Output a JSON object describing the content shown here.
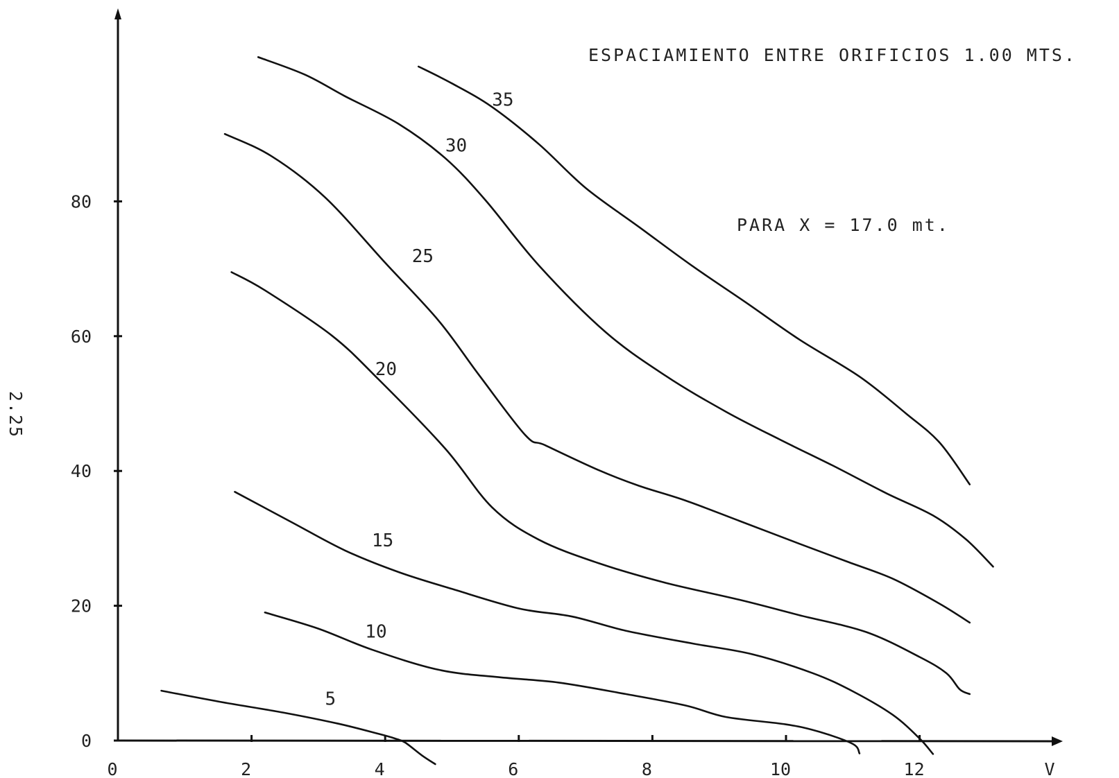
{
  "page_label": "2.25",
  "chart_data": {
    "type": "line",
    "title": "ESPACIAMIENTO ENTRE ORIFICIOS 1.00 MTS.",
    "subtitle": "PARA X = 17.0 mt.",
    "xlabel": "V",
    "ylabel": "",
    "xlim": [
      0,
      14
    ],
    "ylim": [
      0,
      100
    ],
    "grid": false,
    "x_ticks": [
      0,
      2,
      4,
      6,
      8,
      10,
      12
    ],
    "x_tick_labels": [
      "0",
      "2",
      "4",
      "6",
      "8",
      "10",
      "12"
    ],
    "y_ticks": [
      0,
      20,
      40,
      60,
      80
    ],
    "y_tick_labels": [
      "0",
      "20",
      "40",
      "60",
      "80"
    ],
    "series": [
      {
        "name": "5",
        "label_at": [
          3.1,
          5.3
        ],
        "points": [
          [
            0.65,
            7.4
          ],
          [
            1.5,
            5.8
          ],
          [
            2.5,
            4.1
          ],
          [
            3.3,
            2.5
          ],
          [
            3.9,
            1.0
          ],
          [
            4.15,
            0.3
          ],
          [
            4.3,
            -0.3
          ],
          [
            4.55,
            -2.2
          ],
          [
            4.75,
            -3.5
          ]
        ]
      },
      {
        "name": "10",
        "label_at": [
          3.7,
          15.3
        ],
        "points": [
          [
            2.2,
            19.0
          ],
          [
            3.0,
            16.6
          ],
          [
            3.8,
            13.5
          ],
          [
            4.8,
            10.5
          ],
          [
            5.7,
            9.4
          ],
          [
            6.6,
            8.6
          ],
          [
            7.6,
            6.9
          ],
          [
            8.5,
            5.2
          ],
          [
            9.1,
            3.5
          ],
          [
            10.0,
            2.4
          ],
          [
            10.5,
            1.3
          ],
          [
            11.0,
            -0.5
          ],
          [
            11.1,
            -1.9
          ]
        ]
      },
      {
        "name": "15",
        "label_at": [
          3.8,
          28.8
        ],
        "points": [
          [
            1.75,
            36.9
          ],
          [
            2.6,
            32.4
          ],
          [
            3.4,
            28.2
          ],
          [
            4.2,
            25.0
          ],
          [
            5.0,
            22.5
          ],
          [
            6.0,
            19.6
          ],
          [
            6.8,
            18.4
          ],
          [
            7.6,
            16.3
          ],
          [
            8.6,
            14.4
          ],
          [
            9.5,
            12.8
          ],
          [
            10.4,
            10.0
          ],
          [
            11.0,
            7.3
          ],
          [
            11.6,
            3.8
          ],
          [
            12.0,
            0.3
          ],
          [
            12.2,
            -2.0
          ]
        ]
      },
      {
        "name": "20",
        "label_at": [
          3.85,
          54.2
        ],
        "points": [
          [
            1.7,
            69.5
          ],
          [
            2.2,
            66.8
          ],
          [
            3.2,
            60.1
          ],
          [
            3.9,
            53.6
          ],
          [
            4.9,
            43.3
          ],
          [
            5.6,
            34.6
          ],
          [
            6.3,
            29.8
          ],
          [
            7.2,
            26.3
          ],
          [
            8.2,
            23.4
          ],
          [
            9.3,
            20.9
          ],
          [
            10.2,
            18.6
          ],
          [
            11.2,
            16.1
          ],
          [
            12.0,
            12.4
          ],
          [
            12.4,
            10.0
          ],
          [
            12.6,
            7.6
          ],
          [
            12.75,
            6.9
          ]
        ]
      },
      {
        "name": "25",
        "label_at": [
          4.4,
          71.0
        ],
        "points": [
          [
            1.6,
            90.0
          ],
          [
            2.3,
            86.7
          ],
          [
            3.1,
            80.6
          ],
          [
            4.0,
            70.9
          ],
          [
            4.8,
            62.3
          ],
          [
            5.4,
            54.3
          ],
          [
            6.1,
            45.3
          ],
          [
            6.4,
            43.8
          ],
          [
            7.2,
            40.1
          ],
          [
            7.8,
            37.8
          ],
          [
            8.5,
            35.6
          ],
          [
            9.3,
            32.6
          ],
          [
            10.2,
            29.2
          ],
          [
            10.9,
            26.6
          ],
          [
            11.6,
            24.0
          ],
          [
            12.3,
            20.3
          ],
          [
            12.75,
            17.5
          ]
        ]
      },
      {
        "name": "30",
        "label_at": [
          4.9,
          87.4
        ],
        "points": [
          [
            2.1,
            101.4
          ],
          [
            2.8,
            98.8
          ],
          [
            3.4,
            95.6
          ],
          [
            4.2,
            91.5
          ],
          [
            4.9,
            86.4
          ],
          [
            5.5,
            80.2
          ],
          [
            6.3,
            70.5
          ],
          [
            7.3,
            60.6
          ],
          [
            8.2,
            54.1
          ],
          [
            9.1,
            48.8
          ],
          [
            9.9,
            44.7
          ],
          [
            10.7,
            40.8
          ],
          [
            11.5,
            36.7
          ],
          [
            12.2,
            33.4
          ],
          [
            12.7,
            29.8
          ],
          [
            13.1,
            25.8
          ]
        ]
      },
      {
        "name": "35",
        "label_at": [
          5.6,
          94.2
        ],
        "points": [
          [
            4.5,
            100.0
          ],
          [
            5.0,
            97.5
          ],
          [
            5.6,
            94.0
          ],
          [
            6.3,
            88.5
          ],
          [
            7.0,
            82.0
          ],
          [
            7.8,
            76.2
          ],
          [
            8.6,
            70.4
          ],
          [
            9.4,
            65.0
          ],
          [
            10.2,
            59.5
          ],
          [
            11.1,
            54.0
          ],
          [
            11.8,
            48.5
          ],
          [
            12.3,
            44.2
          ],
          [
            12.75,
            38.0
          ]
        ]
      }
    ]
  }
}
